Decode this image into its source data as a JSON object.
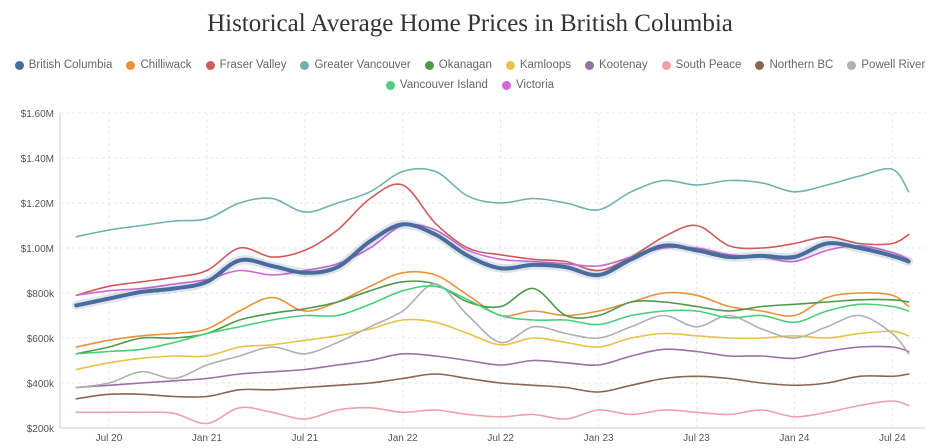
{
  "chart_data": {
    "type": "line",
    "title": "Historical Average Home Prices in British Columbia",
    "xlabel": "",
    "ylabel": "",
    "ylim": [
      200000,
      1600000
    ],
    "yticks": [
      "$200k",
      "$400k",
      "$600k",
      "$800k",
      "$1.00M",
      "$1.20M",
      "$1.40M",
      "$1.60M"
    ],
    "ytick_values": [
      200000,
      400000,
      600000,
      800000,
      1000000,
      1200000,
      1400000,
      1600000
    ],
    "xticks": [
      "Jul 20",
      "Jan 21",
      "Jul 21",
      "Jan 22",
      "Jul 22",
      "Jan 23",
      "Jul 23",
      "Jan 24",
      "Jul 24"
    ],
    "xtick_months": [
      6,
      12,
      18,
      24,
      30,
      36,
      42,
      48,
      54
    ],
    "x_unit": "months since Jan 2020",
    "x": [
      4,
      6,
      8,
      10,
      12,
      14,
      16,
      18,
      20,
      22,
      24,
      26,
      28,
      30,
      32,
      34,
      36,
      38,
      40,
      42,
      44,
      46,
      48,
      50,
      52,
      54,
      55
    ],
    "grid": true,
    "legend_position": "top",
    "series": [
      {
        "name": "British Columbia",
        "color": "#4a6c9b",
        "width": 4,
        "values": [
          745000,
          775000,
          805000,
          820000,
          850000,
          945000,
          920000,
          890000,
          915000,
          1030000,
          1105000,
          1060000,
          965000,
          910000,
          925000,
          915000,
          880000,
          950000,
          1010000,
          990000,
          960000,
          965000,
          960000,
          1020000,
          1000000,
          965000,
          940000
        ]
      },
      {
        "name": "Chilliwack",
        "color": "#e8903a",
        "width": 1.6,
        "values": [
          560000,
          590000,
          610000,
          620000,
          640000,
          720000,
          780000,
          720000,
          760000,
          830000,
          890000,
          880000,
          790000,
          700000,
          720000,
          700000,
          720000,
          760000,
          800000,
          790000,
          740000,
          720000,
          700000,
          780000,
          800000,
          790000,
          740000
        ]
      },
      {
        "name": "Fraser Valley",
        "color": "#d05a5a",
        "width": 1.6,
        "values": [
          790000,
          830000,
          850000,
          870000,
          900000,
          1000000,
          960000,
          990000,
          1080000,
          1220000,
          1280000,
          1110000,
          1000000,
          970000,
          950000,
          940000,
          900000,
          960000,
          1050000,
          1100000,
          1010000,
          1000000,
          1020000,
          1050000,
          1020000,
          1020000,
          1060000
        ]
      },
      {
        "name": "Greater Vancouver",
        "color": "#6fb1b1",
        "width": 1.6,
        "values": [
          1050000,
          1080000,
          1100000,
          1120000,
          1130000,
          1200000,
          1220000,
          1160000,
          1200000,
          1250000,
          1340000,
          1340000,
          1230000,
          1200000,
          1220000,
          1200000,
          1170000,
          1250000,
          1300000,
          1280000,
          1300000,
          1290000,
          1250000,
          1280000,
          1320000,
          1350000,
          1250000
        ]
      },
      {
        "name": "Okanagan",
        "color": "#4d9a4d",
        "width": 1.6,
        "values": [
          530000,
          560000,
          600000,
          600000,
          620000,
          680000,
          710000,
          730000,
          760000,
          810000,
          850000,
          840000,
          760000,
          740000,
          820000,
          700000,
          700000,
          760000,
          760000,
          740000,
          720000,
          740000,
          750000,
          760000,
          770000,
          770000,
          760000
        ]
      },
      {
        "name": "Kamloops",
        "color": "#e6c24a",
        "width": 1.6,
        "values": [
          460000,
          490000,
          510000,
          520000,
          520000,
          560000,
          570000,
          590000,
          610000,
          640000,
          680000,
          670000,
          620000,
          570000,
          600000,
          580000,
          560000,
          600000,
          620000,
          610000,
          600000,
          600000,
          610000,
          600000,
          620000,
          630000,
          610000
        ]
      },
      {
        "name": "Kootenay",
        "color": "#9a6fa6",
        "width": 1.6,
        "values": [
          380000,
          390000,
          400000,
          410000,
          420000,
          440000,
          450000,
          460000,
          480000,
          500000,
          530000,
          520000,
          500000,
          480000,
          500000,
          490000,
          480000,
          520000,
          550000,
          540000,
          520000,
          520000,
          510000,
          540000,
          560000,
          560000,
          540000
        ]
      },
      {
        "name": "South Peace",
        "color": "#f0a0a8",
        "width": 1.6,
        "values": [
          270000,
          270000,
          270000,
          265000,
          220000,
          290000,
          270000,
          240000,
          280000,
          290000,
          270000,
          280000,
          260000,
          250000,
          260000,
          240000,
          280000,
          260000,
          280000,
          270000,
          260000,
          280000,
          250000,
          270000,
          300000,
          320000,
          300000
        ]
      },
      {
        "name": "Northern BC",
        "color": "#8a6650",
        "width": 1.6,
        "values": [
          330000,
          350000,
          350000,
          340000,
          340000,
          370000,
          370000,
          380000,
          390000,
          400000,
          420000,
          440000,
          420000,
          400000,
          390000,
          380000,
          360000,
          390000,
          420000,
          430000,
          420000,
          400000,
          390000,
          400000,
          430000,
          430000,
          440000
        ]
      },
      {
        "name": "Powell River",
        "color": "#b0b0b0",
        "width": 1.6,
        "values": [
          380000,
          400000,
          450000,
          420000,
          480000,
          520000,
          560000,
          530000,
          580000,
          650000,
          720000,
          840000,
          700000,
          580000,
          650000,
          620000,
          600000,
          650000,
          700000,
          650000,
          700000,
          640000,
          600000,
          650000,
          700000,
          620000,
          530000
        ]
      },
      {
        "name": "Vancouver Island",
        "color": "#47cf7a",
        "width": 1.6,
        "values": [
          530000,
          540000,
          550000,
          580000,
          620000,
          650000,
          680000,
          700000,
          700000,
          750000,
          810000,
          830000,
          770000,
          700000,
          680000,
          680000,
          660000,
          700000,
          720000,
          720000,
          690000,
          700000,
          670000,
          720000,
          750000,
          740000,
          720000
        ]
      },
      {
        "name": "Victoria",
        "color": "#d466d8",
        "width": 1.6,
        "values": [
          790000,
          810000,
          820000,
          840000,
          860000,
          900000,
          880000,
          900000,
          930000,
          1000000,
          1100000,
          1080000,
          990000,
          950000,
          940000,
          930000,
          920000,
          960000,
          1000000,
          1000000,
          970000,
          960000,
          940000,
          990000,
          1010000,
          980000,
          950000
        ]
      }
    ]
  }
}
